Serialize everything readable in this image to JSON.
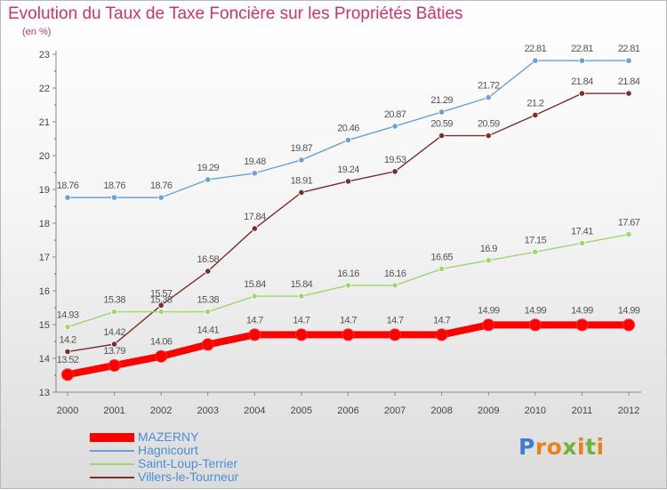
{
  "title": "Evolution du Taux de Taxe Foncière sur les Propriétés Bâties",
  "subtitle": "(en %)",
  "logo": {
    "text": "Proxiti",
    "letter_colors": [
      "#3d7fd0",
      "#e8821f",
      "#e8821f",
      "#6fb43c",
      "#e8821f",
      "#6fb43c",
      "#e8821f"
    ]
  },
  "chart_data": {
    "type": "line",
    "title": "Evolution du Taux de Taxe Foncière sur les Propriétés Bâties",
    "ylabel": "(en %)",
    "xlabel": "",
    "x": [
      "2000",
      "2001",
      "2002",
      "2003",
      "2004",
      "2005",
      "2006",
      "2007",
      "2008",
      "2009",
      "2010",
      "2011",
      "2012"
    ],
    "ylim": [
      13,
      23
    ],
    "yticks": [
      13,
      14,
      15,
      16,
      17,
      18,
      19,
      20,
      21,
      22,
      23
    ],
    "grid": false,
    "legend_position": "bottom-left",
    "series": [
      {
        "name": "MAZERNY",
        "color": "#ff0000",
        "values": [
          13.52,
          13.79,
          14.06,
          14.41,
          14.7,
          14.7,
          14.7,
          14.7,
          14.7,
          14.99,
          14.99,
          14.99,
          14.99
        ],
        "labels": [
          "13.52",
          "13.79",
          "14.06",
          "14.41",
          "14.7",
          "14.7",
          "14.7",
          "14.7",
          "14.7",
          "14.99",
          "14.99",
          "14.99",
          "14.99"
        ]
      },
      {
        "name": "Hagnicourt",
        "color": "#6aa1d8",
        "values": [
          18.76,
          18.76,
          18.76,
          19.29,
          19.48,
          19.87,
          20.46,
          20.87,
          21.29,
          21.72,
          22.81,
          22.81,
          22.81
        ],
        "labels": [
          "18.76",
          "18.76",
          "18.76",
          "19.29",
          "19.48",
          "19.87",
          "20.46",
          "20.87",
          "21.29",
          "21.72",
          "22.81",
          "22.81",
          "22.81"
        ]
      },
      {
        "name": "Saint-Loup-Terrier",
        "color": "#9fd66f",
        "values": [
          14.93,
          15.38,
          15.38,
          15.38,
          15.84,
          15.84,
          16.16,
          16.16,
          16.65,
          16.9,
          17.15,
          17.41,
          17.67
        ],
        "labels": [
          "14.93",
          "15.38",
          "15.38",
          "15.38",
          "15.84",
          "15.84",
          "16.16",
          "16.16",
          "16.65",
          "16.9",
          "17.15",
          "17.41",
          "17.67"
        ]
      },
      {
        "name": "Villers-le-Tourneur",
        "color": "#7a2e2e",
        "values": [
          14.2,
          14.42,
          15.57,
          16.58,
          17.84,
          18.91,
          19.24,
          19.53,
          20.59,
          20.59,
          21.2,
          21.84,
          21.84
        ],
        "labels": [
          "14.2",
          "14.42",
          "15.57",
          "16.58",
          "17.84",
          "18.91",
          "19.24",
          "19.53",
          "20.59",
          "20.59",
          "21.2",
          "21.84",
          "21.84"
        ]
      }
    ]
  }
}
